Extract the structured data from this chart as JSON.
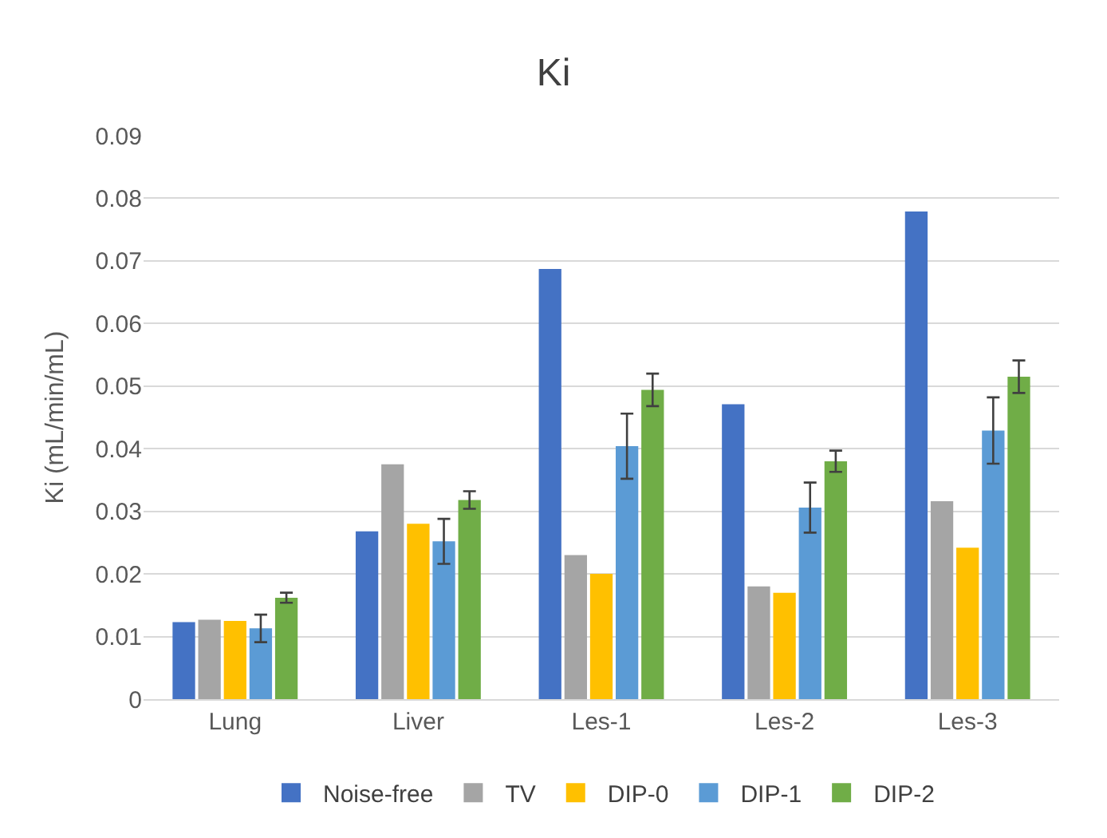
{
  "chart_data": {
    "type": "bar",
    "title": "Ki",
    "ylabel": "Ki (mL/min/mL)",
    "categories": [
      "Lung",
      "Liver",
      "Les-1",
      "Les-2",
      "Les-3"
    ],
    "series": [
      {
        "name": "Noise-free",
        "color": "#4472c4",
        "values": [
          0.0123,
          0.0268,
          0.0687,
          0.0471,
          0.0779
        ]
      },
      {
        "name": "TV",
        "color": "#a5a5a5",
        "values": [
          0.0127,
          0.0375,
          0.023,
          0.018,
          0.0316
        ]
      },
      {
        "name": "DIP-0",
        "color": "#ffc000",
        "values": [
          0.0125,
          0.028,
          0.02,
          0.017,
          0.0242
        ]
      },
      {
        "name": "DIP-1",
        "color": "#5b9bd5",
        "values": [
          0.0113,
          0.0252,
          0.0404,
          0.0306,
          0.0429
        ],
        "errors": [
          0.0022,
          0.0036,
          0.0052,
          0.004,
          0.0053
        ]
      },
      {
        "name": "DIP-2",
        "color": "#70ad47",
        "values": [
          0.0162,
          0.0318,
          0.0494,
          0.038,
          0.0515
        ],
        "errors": [
          0.0008,
          0.0014,
          0.0026,
          0.0017,
          0.0026
        ]
      }
    ],
    "ylim": [
      0,
      0.09
    ],
    "yticks": [
      0,
      0.01,
      0.02,
      0.03,
      0.04,
      0.05,
      0.06,
      0.07,
      0.08,
      0.09
    ],
    "grid": "y",
    "legend": "bottom"
  }
}
